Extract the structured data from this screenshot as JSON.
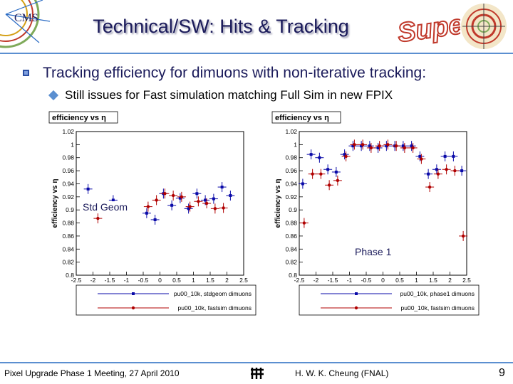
{
  "slide": {
    "title": "Technical/SW: Hits & Tracking",
    "super_word": "Super",
    "bullet1": "Tracking efficiency for dimuons with non-iterative tracking:",
    "bullet2": "Still issues for Fast simulation matching Full Sim in new FPIX",
    "tag_left": "Std Geom",
    "tag_right": "Phase 1",
    "footer_left": "Pixel Upgrade Phase 1 Meeting, 27 April 2010",
    "footer_center": "H. W. K. Cheung (FNAL)",
    "page_number": "9",
    "logo_text": "CMS"
  },
  "colors": {
    "title": "#1a1a5a",
    "rule": "#5b8fd0",
    "full_sim": "#0a0aa8",
    "fast_sim": "#b00000"
  },
  "chart_data": [
    {
      "type": "scatter",
      "title": "efficiency vs η",
      "ylabel": "efficiency vs η",
      "xlabel": "",
      "xlim": [
        -2.5,
        2.5
      ],
      "ylim": [
        0.8,
        1.02
      ],
      "xticks": [
        "-2.5",
        "-2",
        "-1.5",
        "-1",
        "-0.5",
        "0",
        "0.5",
        "1",
        "1.5",
        "2",
        "2.5"
      ],
      "yticks": [
        "0.8",
        "0.82",
        "0.84",
        "0.86",
        "0.88",
        "0.9",
        "0.92",
        "0.94",
        "0.96",
        "0.98",
        "1",
        "1.02"
      ],
      "series": [
        {
          "name": "pu00_10k, stdgeom dimuons",
          "x": [
            -2.125,
            -1.375,
            -0.375,
            -0.125,
            0.125,
            0.375,
            0.625,
            0.875,
            1.125,
            1.375,
            1.625,
            1.875,
            2.125
          ],
          "y": [
            0.932,
            0.915,
            0.895,
            0.885,
            0.925,
            0.907,
            0.918,
            0.902,
            0.925,
            0.915,
            0.917,
            0.935,
            0.922
          ]
        },
        {
          "name": "pu00_10k, fastsim dimuons",
          "x": [
            -1.875,
            -0.375,
            -0.125,
            0.125,
            0.375,
            0.625,
            0.875,
            1.125,
            1.375,
            1.625,
            1.875
          ],
          "y": [
            0.887,
            0.905,
            0.915,
            0.925,
            0.922,
            0.92,
            0.905,
            0.913,
            0.91,
            0.902,
            0.903
          ]
        }
      ]
    },
    {
      "type": "scatter",
      "title": "efficiency vs η",
      "ylabel": "efficiency vs η",
      "xlabel": "",
      "xlim": [
        -2.5,
        2.5
      ],
      "ylim": [
        0.8,
        1.02
      ],
      "xticks": [
        "-2.5",
        "-2",
        "-1.5",
        "-1",
        "-0.5",
        "0",
        "0.5",
        "1",
        "1.5",
        "2",
        "2.5"
      ],
      "yticks": [
        "0.8",
        "0.82",
        "0.84",
        "0.86",
        "0.88",
        "0.9",
        "0.92",
        "0.94",
        "0.96",
        "0.98",
        "1",
        "1.02"
      ],
      "series": [
        {
          "name": "pu00_10k, phase1 dimuons",
          "x": [
            -2.375,
            -2.125,
            -1.875,
            -1.625,
            -1.375,
            -1.125,
            -0.875,
            -0.625,
            -0.375,
            -0.125,
            0.125,
            0.375,
            0.625,
            0.875,
            1.125,
            1.375,
            1.625,
            1.875,
            2.125,
            2.375
          ],
          "y": [
            0.94,
            0.985,
            0.98,
            0.962,
            0.958,
            0.985,
            0.998,
            0.998,
            0.998,
            0.995,
            0.998,
            0.998,
            0.998,
            0.998,
            0.982,
            0.955,
            0.962,
            0.982,
            0.982,
            0.96
          ]
        },
        {
          "name": "pu00_10k, fastsim dimuons",
          "x": [
            -2.375,
            -2.125,
            -1.875,
            -1.625,
            -1.375,
            -1.125,
            -0.875,
            -0.625,
            -0.375,
            -0.125,
            0.125,
            0.375,
            0.625,
            0.875,
            1.125,
            1.375,
            1.625,
            1.875,
            2.125,
            2.375
          ],
          "y": [
            0.88,
            0.955,
            0.955,
            0.938,
            0.945,
            0.982,
            1.0,
            1.0,
            0.995,
            0.998,
            1.0,
            0.998,
            0.995,
            0.995,
            0.978,
            0.935,
            0.955,
            0.962,
            0.96,
            0.86
          ]
        }
      ]
    }
  ]
}
